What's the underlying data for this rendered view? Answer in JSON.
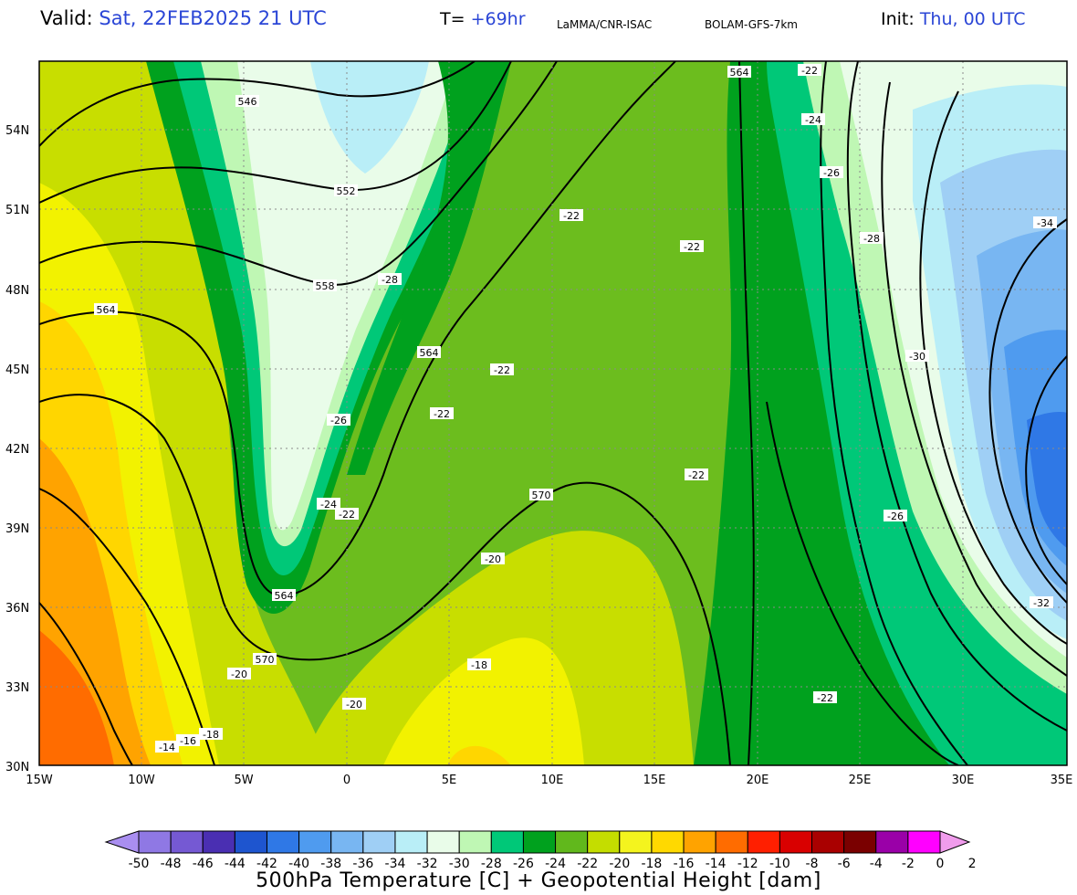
{
  "header": {
    "valid_label": "Valid:",
    "valid_value": "Sat, 22FEB2025  21 UTC",
    "lead_label": "T=",
    "lead_value": "+69hr",
    "source": "LaMMA/CNR-ISAC",
    "model": "BOLAM-GFS-7km",
    "init_label": "Init:",
    "init_value": "Thu, 00 UTC"
  },
  "map": {
    "lat_labels": [
      "54N",
      "51N",
      "48N",
      "45N",
      "42N",
      "39N",
      "36N",
      "33N",
      "30N"
    ],
    "lon_labels": [
      "15W",
      "10W",
      "5W",
      "0",
      "5E",
      "10E",
      "15E",
      "20E",
      "25E",
      "30E",
      "35E"
    ],
    "height_labels": [
      "546",
      "552",
      "558",
      "564",
      "564",
      "564",
      "564",
      "570",
      "570"
    ],
    "temp_labels": [
      "-22",
      "-24",
      "-26",
      "-22",
      "-22",
      "-26",
      "-28",
      "-28",
      "-34",
      "-30",
      "-22",
      "-26",
      "-22",
      "-22",
      "-24",
      "-22",
      "-26",
      "-20",
      "-20",
      "-18",
      "-20",
      "-18",
      "-16",
      "-14",
      "-32",
      "-22"
    ]
  },
  "legend": {
    "title": "500hPa Temperature [C] + Geopotential Height [dam]",
    "ticks": [
      "-50",
      "-48",
      "-46",
      "-44",
      "-42",
      "-40",
      "-38",
      "-36",
      "-34",
      "-32",
      "-30",
      "-28",
      "-26",
      "-24",
      "-22",
      "-20",
      "-18",
      "-16",
      "-14",
      "-12",
      "-10",
      "-8",
      "-6",
      "-4",
      "-2",
      "0",
      "2"
    ],
    "colors": [
      "#a98ef0",
      "#8f78e4",
      "#7559d3",
      "#4a2fb2",
      "#1e55cf",
      "#2f78e6",
      "#4f9bef",
      "#78b6f2",
      "#9fcff5",
      "#b9eef7",
      "#e9fce9",
      "#bff7b4",
      "#00c878",
      "#00a11e",
      "#61b81c",
      "#c4dd00",
      "#f4f41e",
      "#ffd900",
      "#ffa300",
      "#ff6c00",
      "#ff1f00",
      "#d90000",
      "#a90000",
      "#7a0000",
      "#9a00a8",
      "#ff00ff",
      "#f09cec"
    ]
  }
}
